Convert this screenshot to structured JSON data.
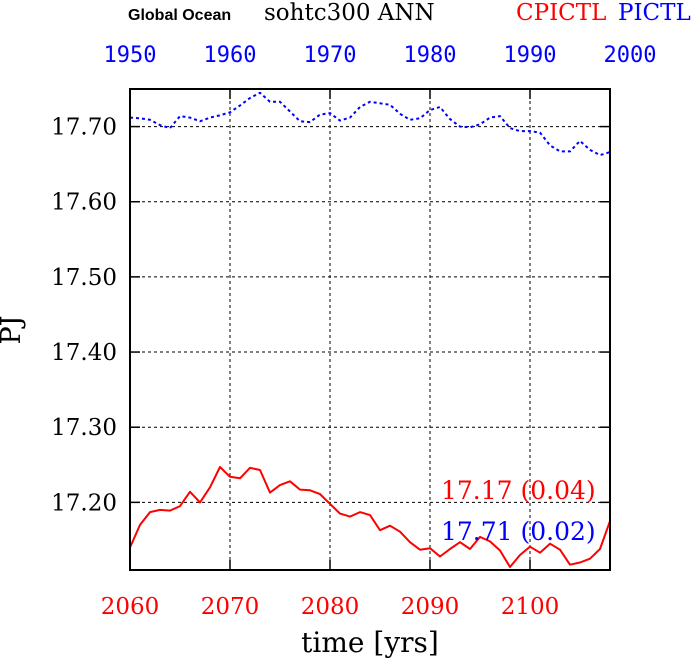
{
  "header": {
    "region": "Global Ocean",
    "variable": "sohtc300 ANN",
    "experiment_red": "CPICTL",
    "experiment_blue": "PICTL"
  },
  "chart_data": {
    "type": "line",
    "ylabel": "PJ",
    "xlabel": "time [yrs]",
    "ylim": [
      17.11,
      17.75
    ],
    "y_ticks": [
      "17.20",
      "17.30",
      "17.40",
      "17.50",
      "17.60",
      "17.70"
    ],
    "y_tick_values": [
      17.2,
      17.3,
      17.4,
      17.5,
      17.6,
      17.7
    ],
    "grid": true,
    "x_bottom": {
      "range": [
        2060,
        2108
      ],
      "ticks": [
        "2060",
        "2070",
        "2080",
        "2090",
        "2100"
      ],
      "tick_values": [
        2060,
        2070,
        2080,
        2090,
        2100
      ],
      "color": "#ff0000"
    },
    "x_top": {
      "range": [
        1950,
        1998
      ],
      "ticks": [
        "1950",
        "1960",
        "1970",
        "1980",
        "1990",
        "2000"
      ],
      "tick_values": [
        1950,
        1960,
        1970,
        1980,
        1990,
        2000
      ],
      "color": "#0000ff"
    },
    "series": [
      {
        "axis": "bottom",
        "color": "#ff0000",
        "style": "solid",
        "x": [
          2060,
          2061,
          2062,
          2063,
          2064,
          2065,
          2066,
          2067,
          2068,
          2069,
          2070,
          2071,
          2072,
          2073,
          2074,
          2075,
          2076,
          2077,
          2078,
          2079,
          2080,
          2081,
          2082,
          2083,
          2084,
          2085,
          2086,
          2087,
          2088,
          2089,
          2090,
          2091,
          2092,
          2093,
          2094,
          2095,
          2096,
          2097,
          2098,
          2099,
          2100,
          2101,
          2102,
          2103,
          2104,
          2105,
          2106,
          2107,
          2108
        ],
        "values": [
          17.14,
          17.17,
          17.187,
          17.19,
          17.189,
          17.195,
          17.214,
          17.2,
          17.22,
          17.247,
          17.234,
          17.232,
          17.246,
          17.243,
          17.213,
          17.223,
          17.228,
          17.217,
          17.216,
          17.211,
          17.198,
          17.185,
          17.181,
          17.187,
          17.183,
          17.163,
          17.169,
          17.161,
          17.147,
          17.137,
          17.139,
          17.128,
          17.138,
          17.147,
          17.138,
          17.154,
          17.148,
          17.136,
          17.114,
          17.13,
          17.141,
          17.133,
          17.145,
          17.137,
          17.117,
          17.12,
          17.125,
          17.138,
          17.175
        ]
      },
      {
        "axis": "top",
        "color": "#0000ff",
        "style": "dotted",
        "x": [
          1950,
          1951,
          1952,
          1953,
          1954,
          1955,
          1956,
          1957,
          1958,
          1959,
          1960,
          1961,
          1962,
          1963,
          1964,
          1965,
          1966,
          1967,
          1968,
          1969,
          1970,
          1971,
          1972,
          1973,
          1974,
          1975,
          1976,
          1977,
          1978,
          1979,
          1980,
          1981,
          1982,
          1983,
          1984,
          1985,
          1986,
          1987,
          1988,
          1989,
          1990,
          1991,
          1992,
          1993,
          1994,
          1995,
          1996,
          1997,
          1998
        ],
        "values": [
          17.712,
          17.711,
          17.709,
          17.702,
          17.698,
          17.714,
          17.712,
          17.707,
          17.712,
          17.715,
          17.719,
          17.728,
          17.738,
          17.745,
          17.733,
          17.733,
          17.72,
          17.707,
          17.706,
          17.716,
          17.718,
          17.708,
          17.712,
          17.726,
          17.733,
          17.731,
          17.729,
          17.717,
          17.709,
          17.711,
          17.722,
          17.726,
          17.71,
          17.7,
          17.699,
          17.703,
          17.712,
          17.714,
          17.698,
          17.694,
          17.694,
          17.692,
          17.675,
          17.667,
          17.667,
          17.681,
          17.669,
          17.662,
          17.666
        ]
      }
    ],
    "annotations": [
      {
        "text": "17.17 (0.04)",
        "color": "#ff0000"
      },
      {
        "text": "17.71 (0.02)",
        "color": "#0000ff"
      }
    ]
  }
}
